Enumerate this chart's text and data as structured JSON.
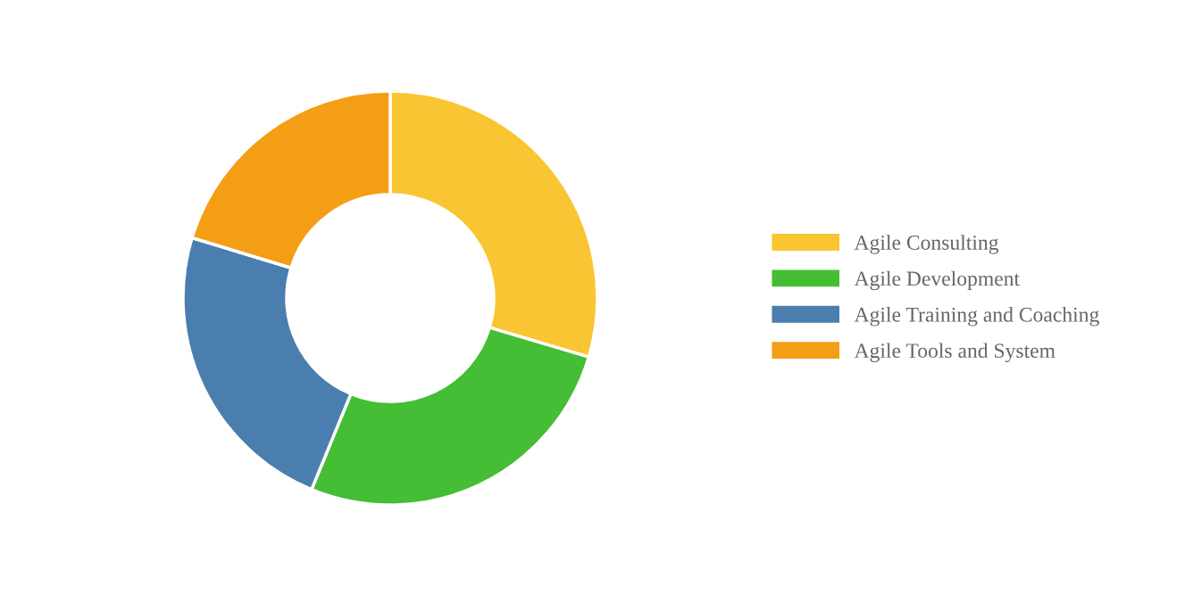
{
  "chart_data": {
    "type": "donut",
    "categories": [
      "Agile Consulting",
      "Agile Development",
      "Agile Training and Coaching",
      "Agile Tools and System"
    ],
    "values": [
      29.6,
      26.6,
      23.5,
      20.3
    ],
    "colors": [
      "#fac532",
      "#45bd34",
      "#4a7eaf",
      "#f39e14"
    ],
    "legend": "right"
  }
}
